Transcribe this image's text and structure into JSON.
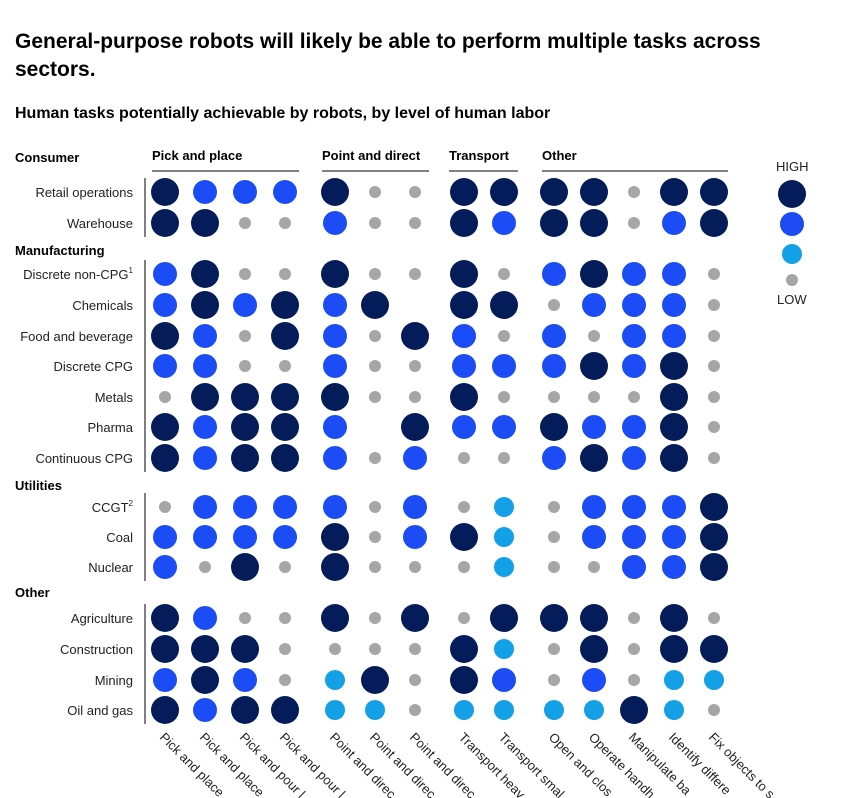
{
  "title": "General-purpose robots will likely be able to perform multiple tasks across sectors.",
  "subtitle": "Human tasks potentially achievable by robots, by level of human labor",
  "colors": {
    "high": "#051c5a",
    "mid": "#1b4cf5",
    "low": "#14a0e6",
    "lowest": "#a6a6a6"
  },
  "legend": {
    "high_label": "HIGH",
    "low_label": "LOW"
  },
  "chart_data": {
    "type": "table",
    "scale": {
      "3": "high",
      "2": "mid",
      "1": "low",
      "0": "lowest",
      "null": "none"
    },
    "column_groups": [
      {
        "label": "Pick and place",
        "span": 4
      },
      {
        "label": "Point and direct",
        "span": 3
      },
      {
        "label": "Transport",
        "span": 2
      },
      {
        "label": "Other",
        "span": 5
      }
    ],
    "columns": [
      "Pick and place",
      "Pick and place",
      "Pick and pour l",
      "Pick and pour l",
      "Point and direc",
      "Point and direc",
      "Point and direc",
      "Transport heav",
      "Transport smal",
      "Open and clos",
      "Operate handh",
      "Manipulate ba",
      "Identify differe",
      "Fix objects to s"
    ],
    "row_groups": [
      {
        "label": "Consumer",
        "rows": [
          {
            "label": "Retail operations",
            "sup": "",
            "values": [
              3,
              2,
              2,
              2,
              3,
              0,
              0,
              3,
              3,
              3,
              3,
              0,
              3,
              3
            ]
          },
          {
            "label": "Warehouse",
            "sup": "",
            "values": [
              3,
              3,
              0,
              0,
              2,
              0,
              0,
              3,
              2,
              3,
              3,
              0,
              2,
              3
            ]
          }
        ]
      },
      {
        "label": "Manufacturing",
        "rows": [
          {
            "label": "Discrete non-CPG",
            "sup": "1",
            "values": [
              2,
              3,
              0,
              0,
              3,
              0,
              0,
              3,
              0,
              2,
              3,
              2,
              2,
              0
            ]
          },
          {
            "label": "Chemicals",
            "sup": "",
            "values": [
              2,
              3,
              2,
              3,
              2,
              3,
              null,
              3,
              3,
              0,
              2,
              2,
              2,
              0
            ]
          },
          {
            "label": "Food and beverage",
            "sup": "",
            "values": [
              3,
              2,
              0,
              3,
              2,
              0,
              3,
              2,
              0,
              2,
              0,
              2,
              2,
              0
            ]
          },
          {
            "label": "Discrete CPG",
            "sup": "",
            "values": [
              2,
              2,
              0,
              0,
              2,
              0,
              0,
              2,
              2,
              2,
              3,
              2,
              3,
              0
            ]
          },
          {
            "label": "Metals",
            "sup": "",
            "values": [
              0,
              3,
              3,
              3,
              3,
              0,
              0,
              3,
              0,
              0,
              0,
              0,
              3,
              0
            ]
          },
          {
            "label": "Pharma",
            "sup": "",
            "values": [
              3,
              2,
              3,
              3,
              2,
              null,
              3,
              2,
              2,
              3,
              2,
              2,
              3,
              0
            ]
          },
          {
            "label": "Continuous CPG",
            "sup": "",
            "values": [
              3,
              2,
              3,
              3,
              2,
              0,
              2,
              0,
              0,
              2,
              3,
              2,
              3,
              0
            ]
          }
        ]
      },
      {
        "label": "Utilities",
        "rows": [
          {
            "label": "CCGT",
            "sup": "2",
            "values": [
              0,
              2,
              2,
              2,
              2,
              0,
              2,
              0,
              1,
              0,
              2,
              2,
              2,
              3
            ]
          },
          {
            "label": "Coal",
            "sup": "",
            "values": [
              2,
              2,
              2,
              2,
              3,
              0,
              2,
              3,
              1,
              0,
              2,
              2,
              2,
              3
            ]
          },
          {
            "label": "Nuclear",
            "sup": "",
            "values": [
              2,
              0,
              3,
              0,
              3,
              0,
              0,
              0,
              1,
              0,
              0,
              2,
              2,
              3
            ]
          }
        ]
      },
      {
        "label": "Other",
        "rows": [
          {
            "label": "Agriculture",
            "sup": "",
            "values": [
              3,
              2,
              0,
              0,
              3,
              0,
              3,
              0,
              3,
              3,
              3,
              0,
              3,
              0
            ]
          },
          {
            "label": "Construction",
            "sup": "",
            "values": [
              3,
              3,
              3,
              0,
              0,
              0,
              0,
              3,
              1,
              0,
              3,
              0,
              3,
              3
            ]
          },
          {
            "label": "Mining",
            "sup": "",
            "values": [
              2,
              3,
              2,
              0,
              1,
              3,
              0,
              3,
              2,
              0,
              2,
              0,
              1,
              1
            ]
          },
          {
            "label": "Oil and gas",
            "sup": "",
            "values": [
              3,
              2,
              3,
              3,
              1,
              1,
              0,
              1,
              1,
              1,
              1,
              3,
              1,
              0
            ]
          }
        ]
      }
    ]
  }
}
